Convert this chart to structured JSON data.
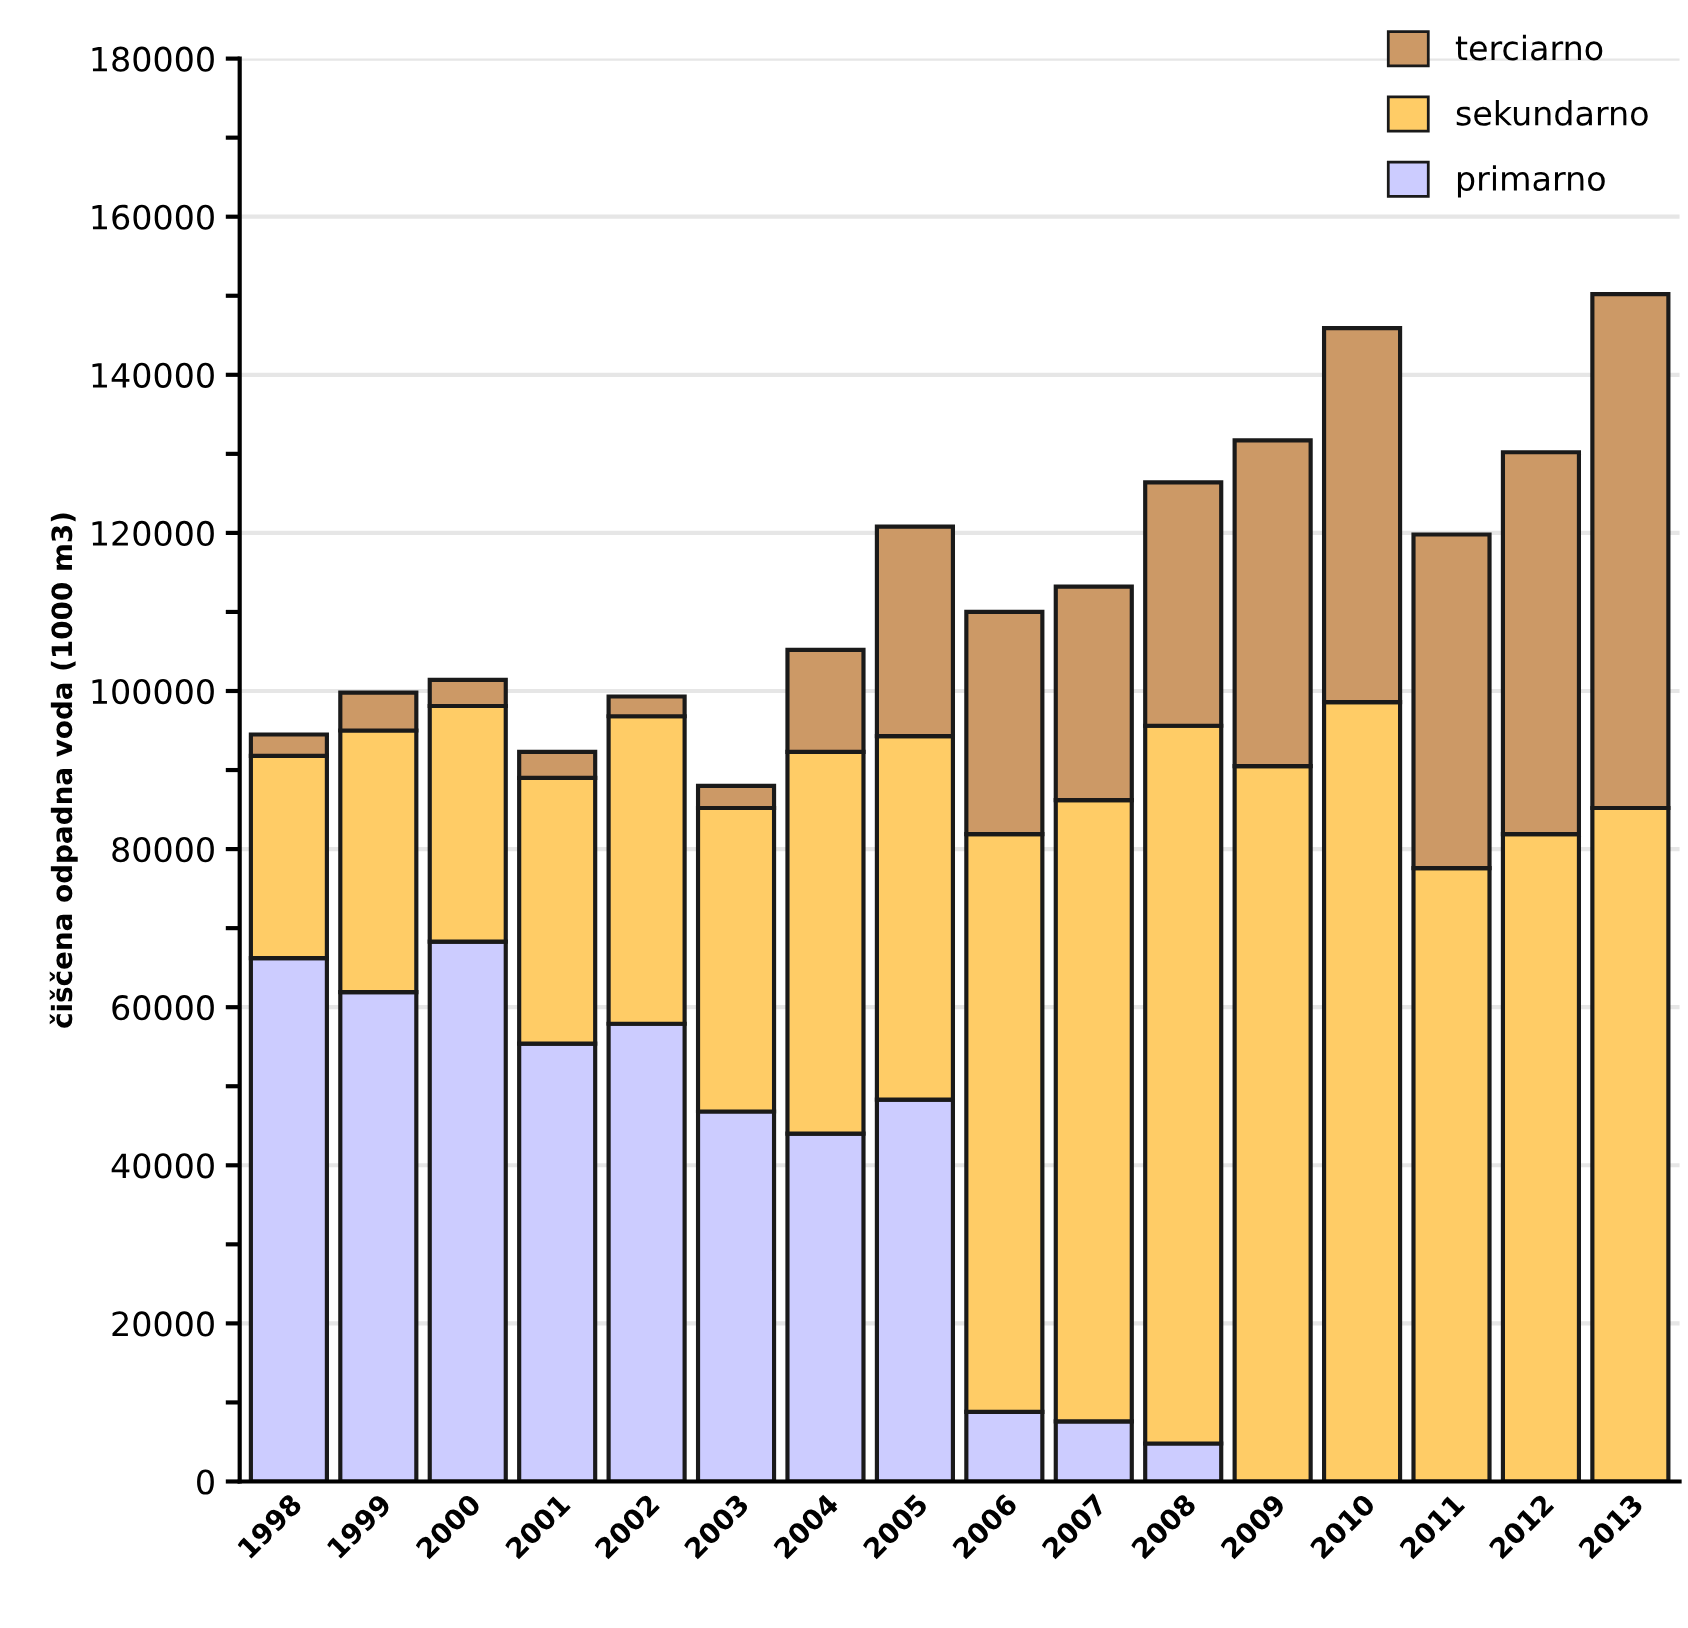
{
  "chart_data": {
    "type": "bar",
    "stacked": true,
    "ylabel": "čiščena odpadna voda (1000 m3)",
    "categories": [
      "1998",
      "1999",
      "2000",
      "2001",
      "2002",
      "2003",
      "2004",
      "2005",
      "2006",
      "2007",
      "2008",
      "2009",
      "2010",
      "2011",
      "2012",
      "2013"
    ],
    "series": [
      {
        "name": "primarno",
        "color": "#ccccff",
        "values": [
          66200,
          61900,
          68300,
          55400,
          57900,
          46800,
          44000,
          48300,
          8800,
          7600,
          4800,
          0,
          0,
          0,
          0,
          0
        ]
      },
      {
        "name": "sekundarno",
        "color": "#ffcc66",
        "values": [
          25600,
          33100,
          29800,
          33600,
          38900,
          38400,
          48300,
          46000,
          73100,
          78600,
          90800,
          90500,
          98600,
          77600,
          81900,
          85200
        ]
      },
      {
        "name": "terciarno",
        "color": "#cc9966",
        "values": [
          2700,
          4800,
          3300,
          3300,
          2500,
          2800,
          12900,
          26500,
          28100,
          27000,
          30800,
          41200,
          47300,
          42200,
          48300,
          65000
        ]
      }
    ],
    "ylim": [
      0,
      180000
    ],
    "yticks": [
      0,
      {
        "value": 10000,
        "label": null
      },
      20000,
      {
        "value": 30000,
        "label": null
      },
      40000,
      {
        "value": 50000,
        "label": null
      },
      60000,
      {
        "value": 70000,
        "label": null
      },
      80000,
      {
        "value": 90000,
        "label": null
      },
      100000,
      {
        "value": 110000,
        "label": null
      },
      120000,
      {
        "value": 130000,
        "label": null
      },
      140000,
      {
        "value": 150000,
        "label": null
      },
      160000,
      {
        "value": 170000,
        "label": null
      },
      180000
    ],
    "grid": "y",
    "legend": "top right"
  }
}
